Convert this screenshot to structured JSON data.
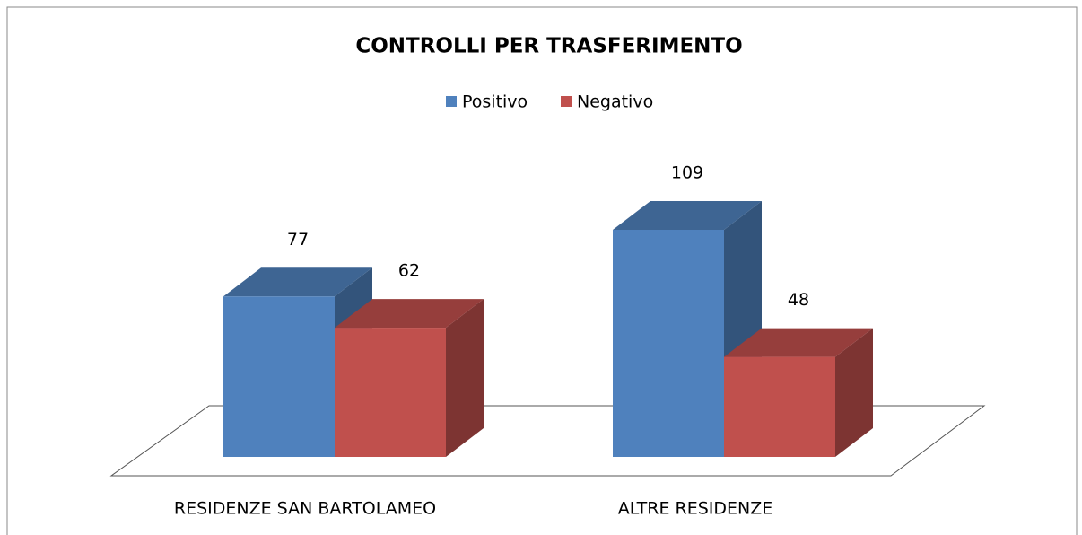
{
  "chart_data": {
    "type": "bar3d",
    "title": "CONTROLLI PER TRASFERIMENTO",
    "categories": [
      "RESIDENZE SAN BARTOLAMEO",
      "ALTRE RESIDENZE"
    ],
    "series": [
      {
        "name": "Positivo",
        "color": "#4f81bd",
        "values": [
          77,
          109
        ]
      },
      {
        "name": "Negativo",
        "color": "#c0504d",
        "values": [
          62,
          48
        ]
      }
    ],
    "legend": "top"
  }
}
